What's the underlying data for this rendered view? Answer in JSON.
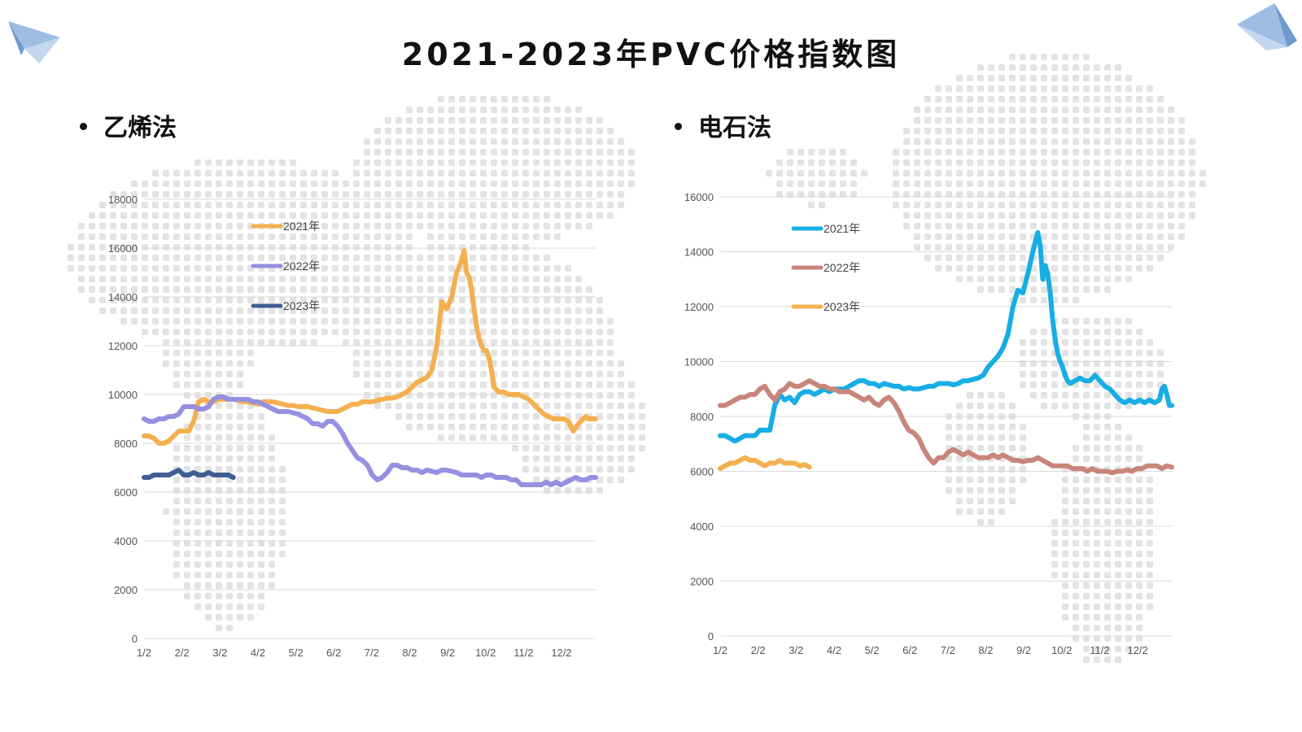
{
  "page": {
    "title": "2021-2023年PVC价格指数图"
  },
  "colors": {
    "grid": "#d9d9d9",
    "axis_text": "#555555",
    "map_dots": "#e3e3e3",
    "deco_blue": "#6f9bcf"
  },
  "icons": {
    "top_left": "paper-plane-icon",
    "top_right": "paper-plane-icon"
  },
  "chart_data": [
    {
      "type": "line",
      "heading": "乙烯法",
      "ylim": [
        0,
        18000
      ],
      "yticks": [
        "0",
        "2000",
        "4000",
        "6000",
        "8000",
        "10000",
        "12000",
        "14000",
        "16000",
        "18000"
      ],
      "xticks": [
        "1/2",
        "2/2",
        "3/2",
        "4/2",
        "5/2",
        "6/2",
        "7/2",
        "8/2",
        "9/2",
        "10/2",
        "11/2",
        "12/2"
      ],
      "legend_position": "top-left",
      "series": [
        {
          "name": "2021年",
          "color": "#f4b04f",
          "x": [
            0,
            4,
            8,
            12,
            16,
            20,
            24,
            28,
            32,
            36,
            40,
            44,
            48,
            52,
            56,
            60,
            64,
            68,
            72,
            76,
            80,
            84,
            88,
            92,
            96,
            100,
            104,
            108,
            112,
            116,
            120,
            124,
            128,
            132,
            136,
            140,
            144,
            148,
            152,
            156,
            160,
            164,
            168,
            172,
            176,
            180,
            184,
            188,
            192,
            196,
            200,
            204,
            208,
            212,
            216,
            220,
            224,
            228,
            232,
            236,
            240,
            244,
            248,
            252,
            256,
            258,
            260,
            262,
            264,
            266,
            268,
            270,
            272,
            274,
            276,
            278,
            280,
            282,
            286,
            290,
            294,
            298,
            302,
            306,
            310,
            314,
            318,
            322,
            326,
            330,
            334,
            338,
            342,
            346,
            350,
            354,
            356,
            358,
            360,
            362,
            364
          ],
          "y": [
            8300,
            8300,
            8200,
            8000,
            8000,
            8100,
            8300,
            8500,
            8500,
            8500,
            8900,
            9700,
            9800,
            9700,
            9700,
            9800,
            9800,
            9800,
            9800,
            9750,
            9700,
            9700,
            9650,
            9600,
            9700,
            9700,
            9700,
            9650,
            9600,
            9550,
            9550,
            9500,
            9500,
            9500,
            9450,
            9400,
            9350,
            9300,
            9300,
            9300,
            9400,
            9500,
            9600,
            9600,
            9700,
            9700,
            9700,
            9750,
            9800,
            9850,
            9850,
            9900,
            10000,
            10100,
            10300,
            10500,
            10600,
            10700,
            11000,
            12000,
            13800,
            13500,
            14000,
            15000,
            15500,
            15900,
            15000,
            14800,
            14300,
            13500,
            12800,
            12300,
            12000,
            11800,
            11800,
            11500,
            11000,
            10300,
            10100,
            10100,
            10000,
            10000,
            10000,
            9900,
            9800,
            9600,
            9400,
            9200,
            9100,
            9000,
            9000,
            9000,
            8900,
            8500,
            8800,
            9000,
            9100,
            9000,
            9000,
            9000,
            9000
          ]
        },
        {
          "name": "2022年",
          "color": "#9690e0",
          "x": [
            0,
            4,
            8,
            12,
            16,
            20,
            24,
            28,
            32,
            36,
            40,
            44,
            48,
            52,
            56,
            60,
            64,
            68,
            72,
            76,
            80,
            84,
            88,
            92,
            96,
            100,
            104,
            108,
            112,
            116,
            120,
            124,
            128,
            132,
            136,
            140,
            144,
            148,
            152,
            156,
            160,
            164,
            168,
            172,
            176,
            180,
            184,
            188,
            192,
            196,
            200,
            204,
            208,
            212,
            216,
            220,
            224,
            228,
            232,
            236,
            240,
            244,
            248,
            252,
            256,
            260,
            264,
            268,
            272,
            276,
            280,
            284,
            288,
            292,
            296,
            300,
            304,
            308,
            312,
            316,
            320,
            324,
            328,
            332,
            336,
            340,
            344,
            348,
            352,
            356,
            360,
            364
          ],
          "y": [
            9000,
            8900,
            8900,
            9000,
            9000,
            9100,
            9100,
            9200,
            9500,
            9500,
            9500,
            9400,
            9400,
            9500,
            9800,
            9900,
            9900,
            9800,
            9800,
            9800,
            9800,
            9800,
            9700,
            9700,
            9600,
            9500,
            9400,
            9300,
            9300,
            9300,
            9250,
            9200,
            9100,
            9000,
            8800,
            8800,
            8700,
            8900,
            8900,
            8700,
            8400,
            8000,
            7700,
            7400,
            7300,
            7100,
            6700,
            6500,
            6600,
            6800,
            7100,
            7100,
            7000,
            7000,
            6900,
            6900,
            6800,
            6900,
            6850,
            6800,
            6900,
            6900,
            6850,
            6800,
            6700,
            6700,
            6700,
            6700,
            6600,
            6700,
            6700,
            6600,
            6600,
            6600,
            6500,
            6500,
            6300,
            6300,
            6300,
            6300,
            6300,
            6400,
            6300,
            6400,
            6300,
            6400,
            6500,
            6600,
            6500,
            6500,
            6600,
            6600
          ]
        },
        {
          "name": "2023年",
          "color": "#3f5f93",
          "x": [
            0,
            4,
            8,
            12,
            16,
            20,
            24,
            28,
            32,
            36,
            40,
            44,
            48,
            52,
            56,
            60,
            64,
            68,
            72
          ],
          "y": [
            6600,
            6600,
            6700,
            6700,
            6700,
            6700,
            6800,
            6900,
            6700,
            6700,
            6800,
            6700,
            6700,
            6800,
            6700,
            6700,
            6700,
            6700,
            6600
          ]
        }
      ]
    },
    {
      "type": "line",
      "heading": "电石法",
      "ylim": [
        0,
        16000
      ],
      "yticks": [
        "0",
        "2000",
        "4000",
        "6000",
        "8000",
        "10000",
        "12000",
        "14000",
        "16000"
      ],
      "xticks": [
        "1/2",
        "2/2",
        "3/2",
        "4/2",
        "5/2",
        "6/2",
        "7/2",
        "8/2",
        "9/2",
        "10/2",
        "11/2",
        "12/2"
      ],
      "legend_position": "top-left",
      "series": [
        {
          "name": "2021年",
          "color": "#17ade5",
          "x": [
            0,
            4,
            8,
            12,
            16,
            20,
            24,
            28,
            32,
            36,
            40,
            44,
            48,
            52,
            56,
            60,
            64,
            68,
            72,
            76,
            80,
            84,
            88,
            92,
            96,
            100,
            104,
            108,
            112,
            116,
            120,
            124,
            128,
            132,
            136,
            140,
            144,
            148,
            152,
            156,
            160,
            164,
            168,
            172,
            176,
            180,
            184,
            188,
            192,
            196,
            200,
            204,
            208,
            212,
            216,
            220,
            224,
            228,
            232,
            236,
            240,
            244,
            248,
            252,
            256,
            258,
            260,
            262,
            264,
            266,
            268,
            270,
            272,
            274,
            276,
            278,
            280,
            282,
            286,
            290,
            294,
            298,
            302,
            306,
            310,
            314,
            318,
            322,
            326,
            330,
            334,
            338,
            342,
            346,
            350,
            354,
            356,
            358,
            360,
            362,
            364
          ],
          "y": [
            7300,
            7300,
            7200,
            7100,
            7200,
            7300,
            7300,
            7300,
            7500,
            7500,
            7500,
            8400,
            8800,
            8600,
            8700,
            8500,
            8800,
            8900,
            8900,
            8800,
            8900,
            9000,
            8900,
            9000,
            9000,
            9000,
            9100,
            9200,
            9300,
            9300,
            9200,
            9200,
            9100,
            9200,
            9150,
            9100,
            9100,
            9000,
            9050,
            9000,
            9000,
            9050,
            9100,
            9100,
            9200,
            9200,
            9200,
            9150,
            9200,
            9300,
            9300,
            9350,
            9400,
            9500,
            9800,
            10000,
            10200,
            10500,
            11000,
            12000,
            12600,
            12500,
            13200,
            14000,
            14700,
            14200,
            13000,
            13500,
            13200,
            12500,
            11500,
            10800,
            10300,
            10000,
            9800,
            9500,
            9300,
            9200,
            9300,
            9400,
            9300,
            9300,
            9500,
            9300,
            9100,
            9000,
            8800,
            8600,
            8500,
            8600,
            8500,
            8600,
            8500,
            8600,
            8500,
            8600,
            9000,
            9100,
            8800,
            8400,
            8400
          ]
        },
        {
          "name": "2022年",
          "color": "#c8857a",
          "x": [
            0,
            4,
            8,
            12,
            16,
            20,
            24,
            28,
            32,
            36,
            40,
            44,
            48,
            52,
            56,
            60,
            64,
            68,
            72,
            76,
            80,
            84,
            88,
            92,
            96,
            100,
            104,
            108,
            112,
            116,
            120,
            124,
            128,
            132,
            136,
            140,
            144,
            148,
            152,
            156,
            160,
            164,
            168,
            172,
            176,
            180,
            184,
            188,
            192,
            196,
            200,
            204,
            208,
            212,
            216,
            220,
            224,
            228,
            232,
            236,
            240,
            244,
            248,
            252,
            256,
            260,
            264,
            268,
            272,
            276,
            280,
            284,
            288,
            292,
            296,
            300,
            304,
            308,
            312,
            316,
            320,
            324,
            328,
            332,
            336,
            340,
            344,
            348,
            352,
            356,
            360,
            364
          ],
          "y": [
            8400,
            8400,
            8500,
            8600,
            8700,
            8700,
            8800,
            8800,
            9000,
            9100,
            8800,
            8600,
            8900,
            9000,
            9200,
            9100,
            9100,
            9200,
            9300,
            9200,
            9100,
            9100,
            9000,
            9000,
            8900,
            8900,
            8900,
            8800,
            8700,
            8600,
            8700,
            8500,
            8400,
            8600,
            8700,
            8500,
            8200,
            7800,
            7500,
            7400,
            7200,
            6800,
            6500,
            6300,
            6500,
            6500,
            6700,
            6800,
            6700,
            6600,
            6700,
            6600,
            6500,
            6500,
            6500,
            6600,
            6500,
            6600,
            6500,
            6400,
            6400,
            6350,
            6400,
            6400,
            6500,
            6400,
            6300,
            6200,
            6200,
            6200,
            6200,
            6100,
            6100,
            6100,
            6000,
            6100,
            6000,
            6000,
            6000,
            5950,
            6000,
            6000,
            6050,
            6000,
            6100,
            6100,
            6200,
            6200,
            6200,
            6100,
            6200,
            6150
          ]
        },
        {
          "name": "2023年",
          "color": "#f4b04f",
          "x": [
            0,
            4,
            8,
            12,
            16,
            20,
            24,
            28,
            32,
            36,
            40,
            44,
            48,
            52,
            56,
            60,
            64,
            68,
            72
          ],
          "y": [
            6100,
            6200,
            6300,
            6300,
            6400,
            6500,
            6400,
            6400,
            6300,
            6200,
            6300,
            6300,
            6400,
            6300,
            6300,
            6300,
            6200,
            6250,
            6150
          ]
        }
      ]
    }
  ]
}
